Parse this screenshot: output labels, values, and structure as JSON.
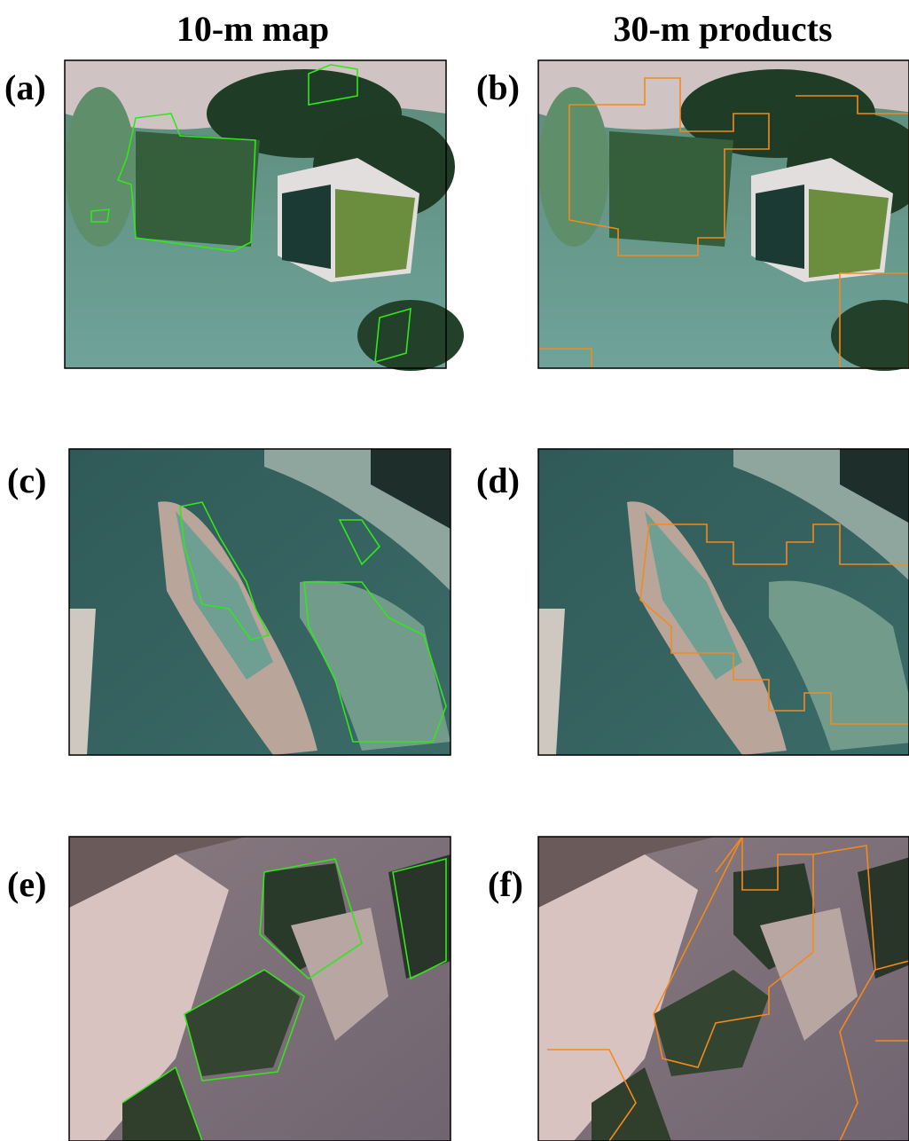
{
  "columns": [
    "10-m map",
    "30-m products"
  ],
  "panels": [
    {
      "label": "(a)"
    },
    {
      "label": "(b)"
    },
    {
      "label": "(c)"
    },
    {
      "label": "(d)"
    },
    {
      "label": "(e)"
    },
    {
      "label": "(f)"
    }
  ]
}
